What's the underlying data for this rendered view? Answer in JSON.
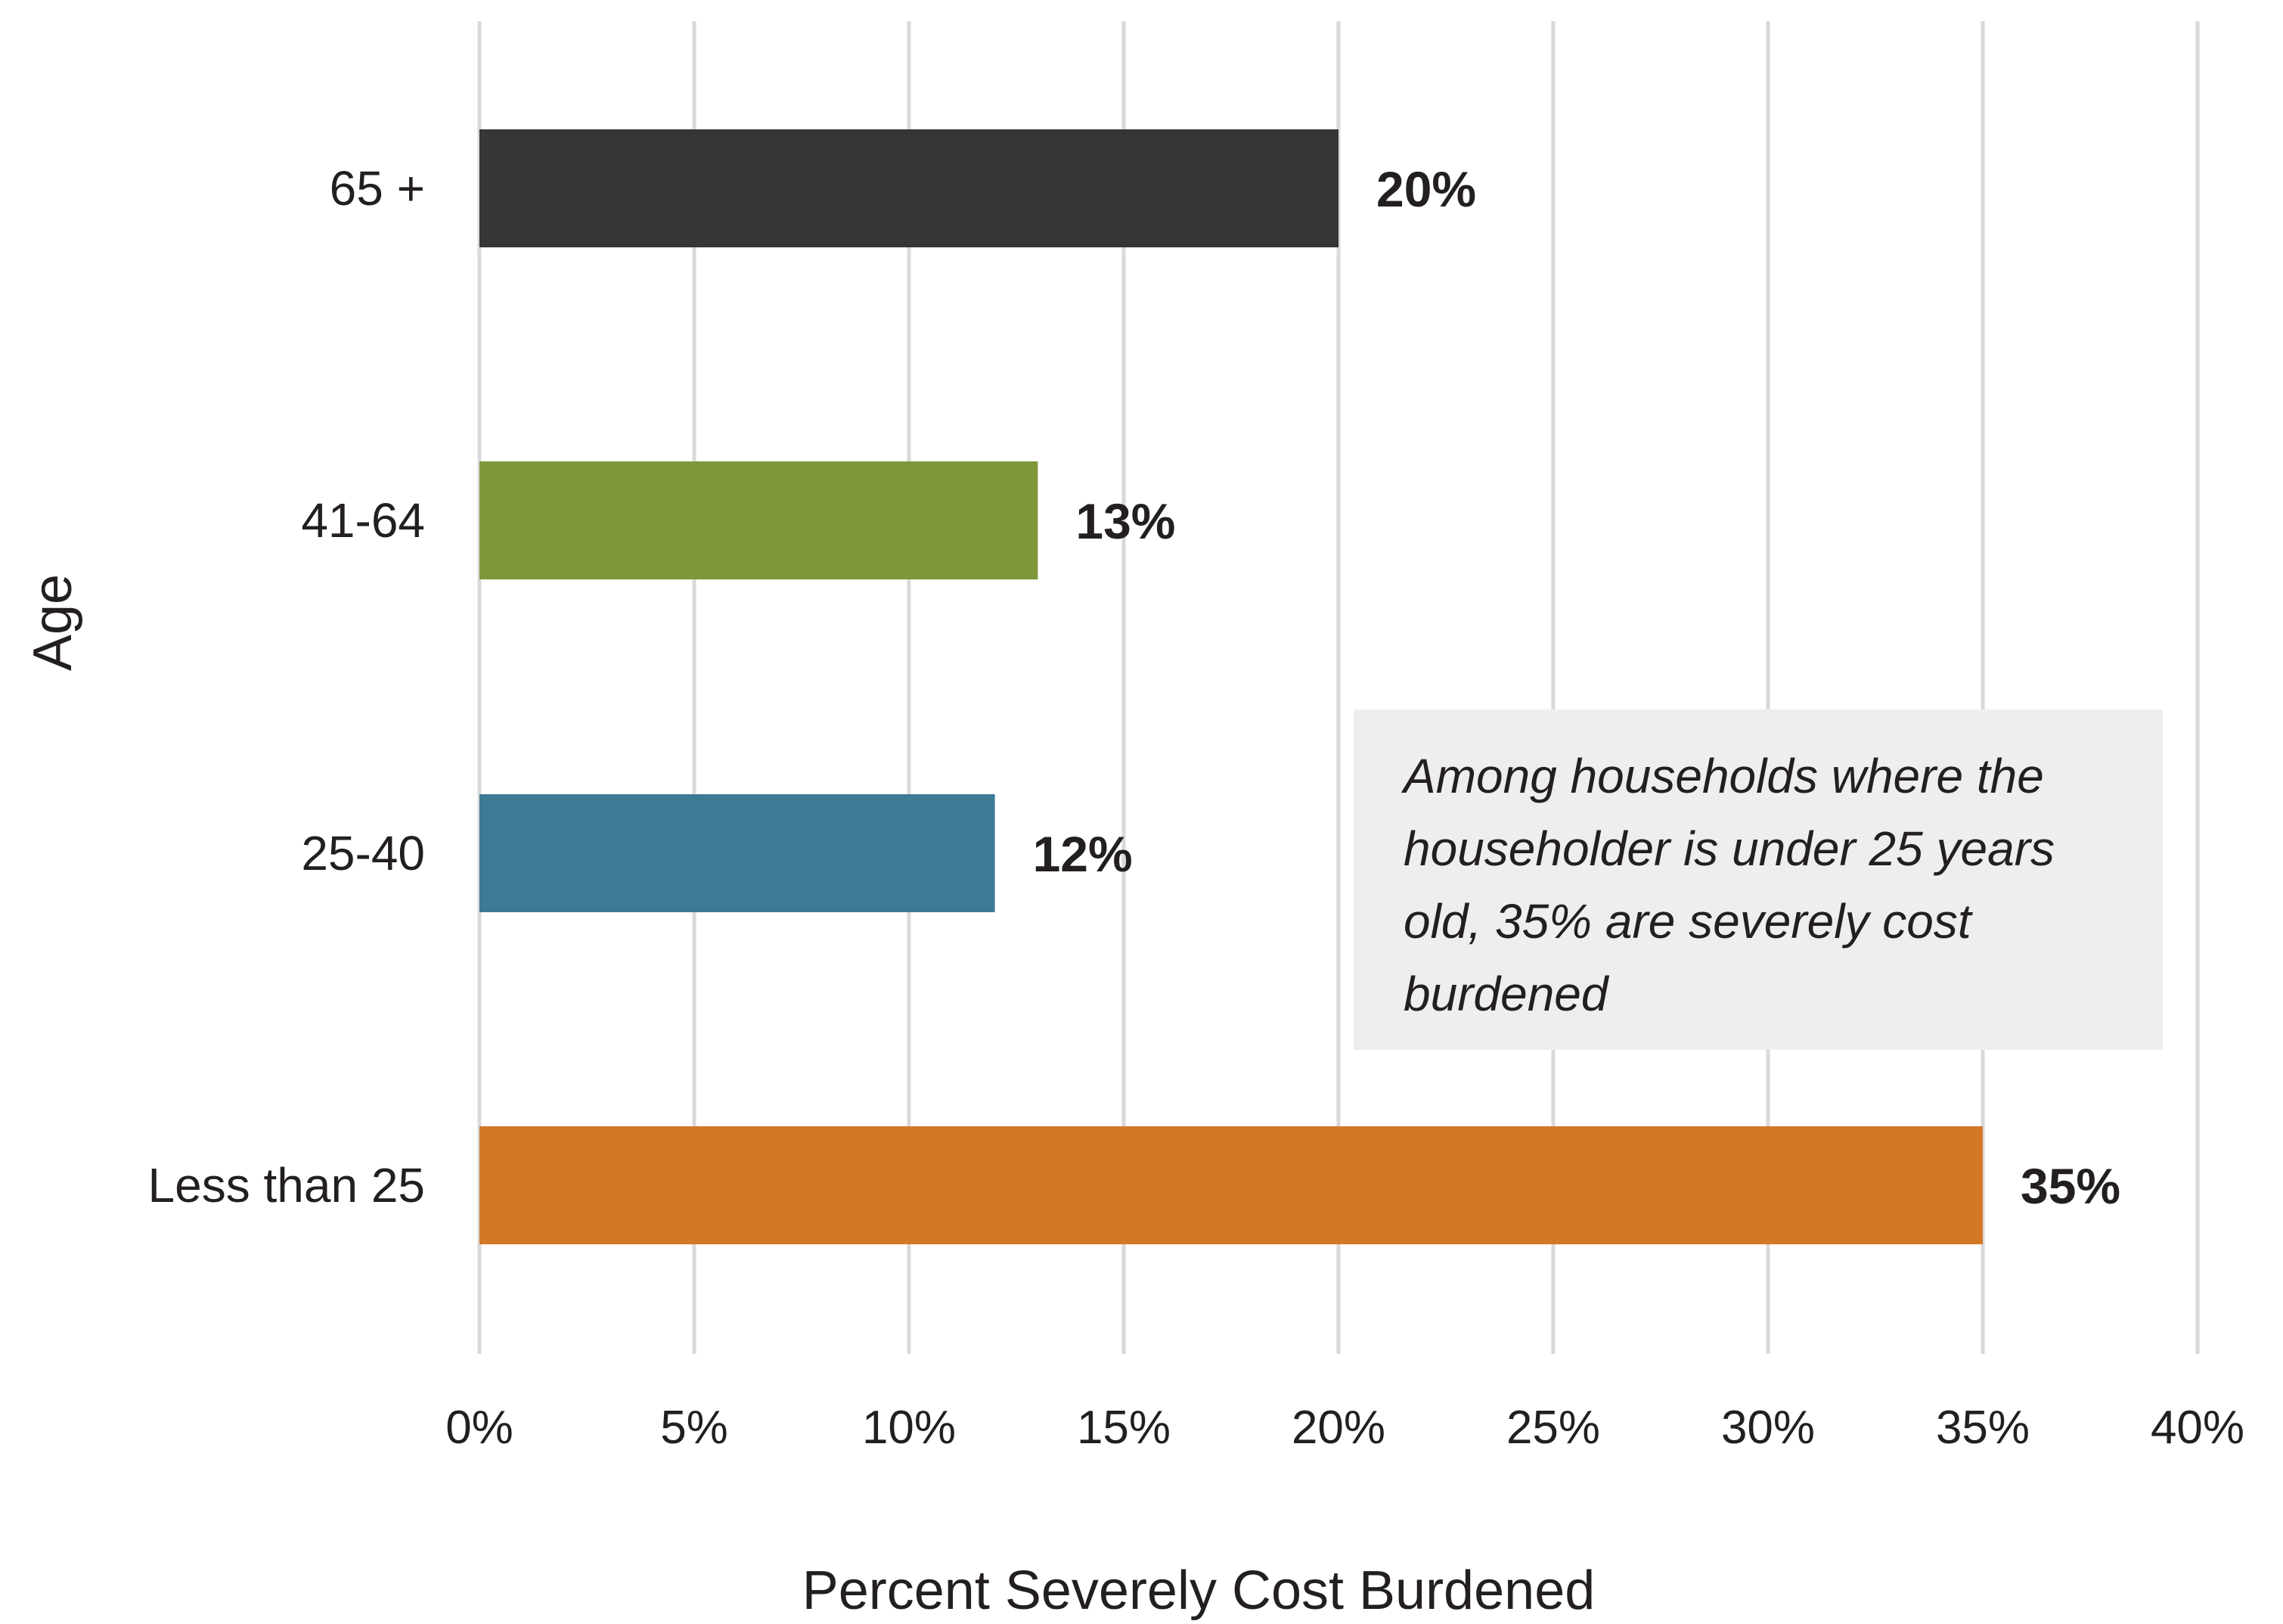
{
  "chart_data": {
    "type": "bar",
    "orientation": "horizontal",
    "categories": [
      "65 +",
      "41-64",
      "25-40",
      "Less than 25"
    ],
    "values": [
      20,
      13,
      12,
      35
    ],
    "value_labels": [
      "20%",
      "13%",
      "12%",
      "35%"
    ],
    "colors": [
      "#373535",
      "#7f973b",
      "#3d7a95",
      "#d37826"
    ],
    "xlabel": "Percent Severely Cost Burdened",
    "ylabel": "Age",
    "xlim": [
      0,
      40
    ],
    "x_ticks": [
      0,
      5,
      10,
      15,
      20,
      25,
      30,
      35,
      40
    ],
    "x_tick_labels": [
      "0%",
      "5%",
      "10%",
      "15%",
      "20%",
      "25%",
      "30%",
      "35%",
      "40%"
    ],
    "grid": "vertical",
    "legend": "none",
    "annotation": "Among households where the householder is under 25 years old, 35% are severely cost burdened"
  },
  "colors": {
    "grid": "#d9d9d9",
    "annotation_background": "#eeeeee",
    "text": "#231f20"
  }
}
